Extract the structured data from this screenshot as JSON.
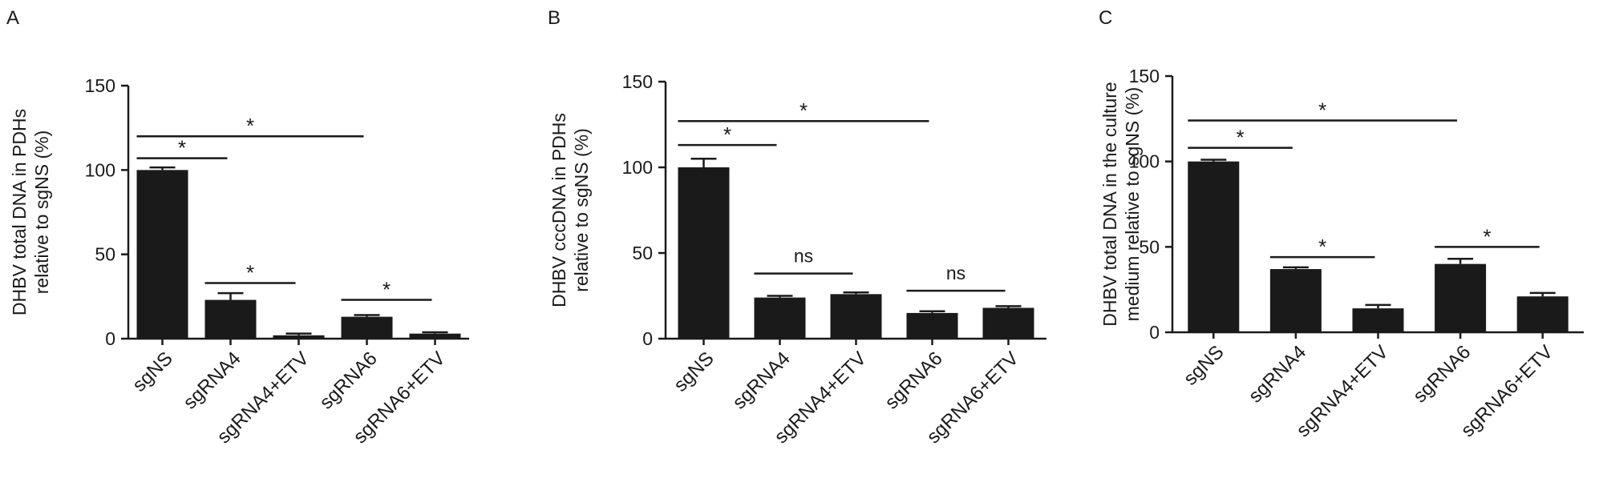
{
  "chart_data": [
    {
      "type": "bar",
      "panel_label": "A",
      "ylabel_lines": [
        "DHBV total DNA in PDHs",
        "relative to sgNS (%)"
      ],
      "ylim": [
        0,
        150
      ],
      "yticks": [
        0,
        50,
        100,
        150
      ],
      "categories": [
        "sgNS",
        "sgRNA4",
        "sgRNA4+ETV",
        "sgRNA6",
        "sgRNA6+ETV"
      ],
      "values": [
        100,
        23,
        2,
        13,
        3
      ],
      "errors": [
        1.5,
        4,
        1,
        1,
        0.8
      ],
      "significance": [
        {
          "from": 0,
          "to": 1,
          "y": 107,
          "label": "*"
        },
        {
          "from": 0,
          "to": 3,
          "y": 120,
          "label": "*"
        },
        {
          "from": 1,
          "to": 2,
          "y": 33,
          "label": "*"
        },
        {
          "from": 3,
          "to": 4,
          "y": 23,
          "label": "*"
        }
      ]
    },
    {
      "type": "bar",
      "panel_label": "B",
      "ylabel_lines": [
        "DHBV cccDNA in PDHs",
        "relative to sgNS (%)"
      ],
      "ylim": [
        0,
        150
      ],
      "yticks": [
        0,
        50,
        100,
        150
      ],
      "categories": [
        "sgNS",
        "sgRNA4",
        "sgRNA4+ETV",
        "sgRNA6",
        "sgRNA6+ETV"
      ],
      "values": [
        100,
        24,
        26,
        15,
        18
      ],
      "errors": [
        5,
        1,
        1,
        1,
        1
      ],
      "significance": [
        {
          "from": 0,
          "to": 1,
          "y": 113,
          "label": "*"
        },
        {
          "from": 0,
          "to": 3,
          "y": 127,
          "label": "*"
        },
        {
          "from": 1,
          "to": 2,
          "y": 38,
          "label": "ns"
        },
        {
          "from": 3,
          "to": 4,
          "y": 28,
          "label": "ns"
        }
      ]
    },
    {
      "type": "bar",
      "panel_label": "C",
      "ylabel_lines": [
        "DHBV total DNA in the culture",
        "medium relative to sgNS (%)"
      ],
      "ylim": [
        0,
        150
      ],
      "yticks": [
        0,
        50,
        100,
        150
      ],
      "categories": [
        "sgNS",
        "sgRNA4",
        "sgRNA4+ETV",
        "sgRNA6",
        "sgRNA6+ETV"
      ],
      "values": [
        100,
        37,
        14,
        40,
        21
      ],
      "errors": [
        1,
        1,
        2,
        3,
        2
      ],
      "significance": [
        {
          "from": 0,
          "to": 1,
          "y": 108,
          "label": "*"
        },
        {
          "from": 0,
          "to": 3,
          "y": 124,
          "label": "*"
        },
        {
          "from": 1,
          "to": 2,
          "y": 44,
          "label": "*"
        },
        {
          "from": 3,
          "to": 4,
          "y": 50,
          "label": "*"
        }
      ]
    }
  ]
}
